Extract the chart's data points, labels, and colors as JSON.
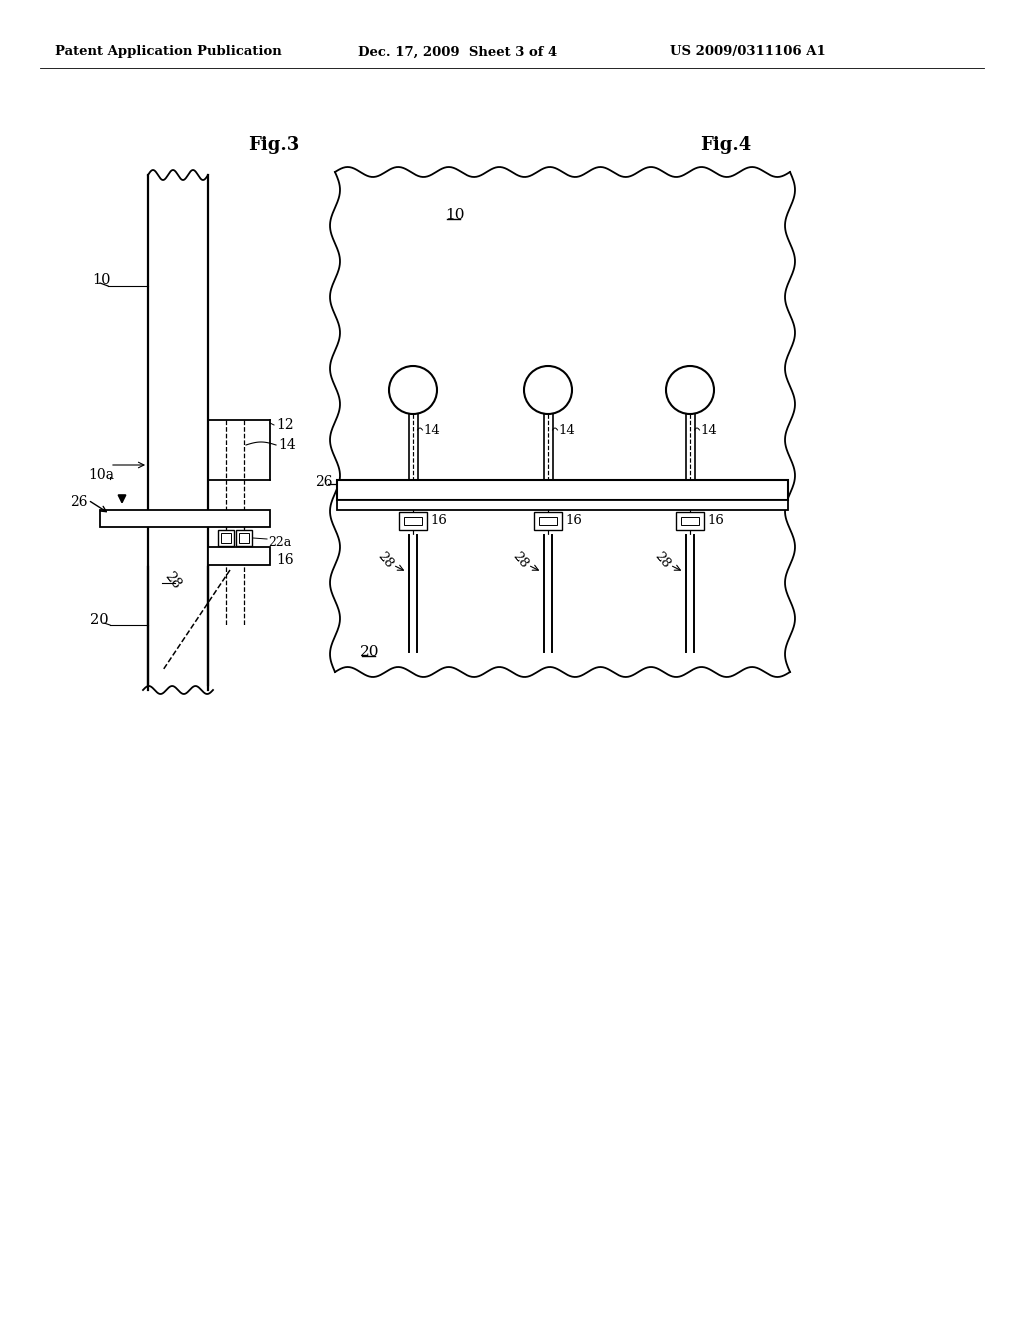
{
  "bg_color": "#ffffff",
  "header_left": "Patent Application Publication",
  "header_mid": "Dec. 17, 2009  Sheet 3 of 4",
  "header_right": "US 2009/0311106 A1",
  "fig3_label": "Fig.3",
  "fig4_label": "Fig.4",
  "lw": 1.3
}
